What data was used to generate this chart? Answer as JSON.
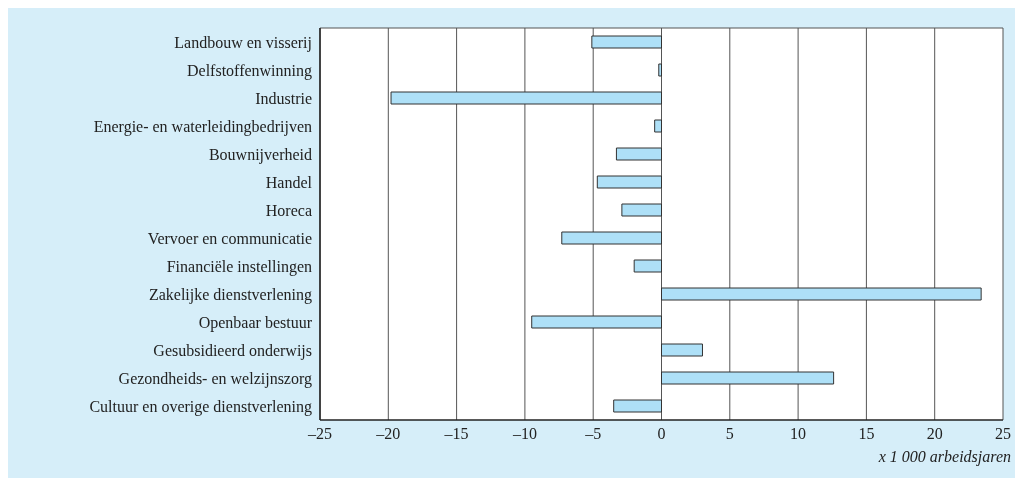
{
  "chart_data": {
    "type": "bar",
    "orientation": "horizontal",
    "xlabel": "x 1 000 arbeidsjaren",
    "categories": [
      "Landbouw en visserij",
      "Delfstoffenwinning",
      "Industrie",
      "Energie- en waterleidingbedrijven",
      "Bouwnijverheid",
      "Handel",
      "Horeca",
      "Vervoer en communicatie",
      "Financiële instellingen",
      "Zakelijke dienstverlening",
      "Openbaar bestuur",
      "Gesubsidieerd onderwijs",
      "Gezondheids- en welzijnszorg",
      "Cultuur en overige dienstverlening"
    ],
    "values": [
      -5.1,
      -0.2,
      -19.8,
      -0.5,
      -3.3,
      -4.7,
      -2.9,
      -7.3,
      -2.0,
      23.4,
      -9.5,
      3.0,
      12.6,
      -3.5
    ],
    "color": "#aee0f7",
    "xlim": [
      -25,
      25
    ],
    "xticks": [
      {
        "value": -25,
        "label": "–25"
      },
      {
        "value": -20,
        "label": "–20"
      },
      {
        "value": -15,
        "label": "–15"
      },
      {
        "value": -10,
        "label": "–10"
      },
      {
        "value": -5,
        "label": "–5"
      },
      0,
      5,
      10,
      15,
      20,
      25
    ],
    "grid": "x"
  }
}
